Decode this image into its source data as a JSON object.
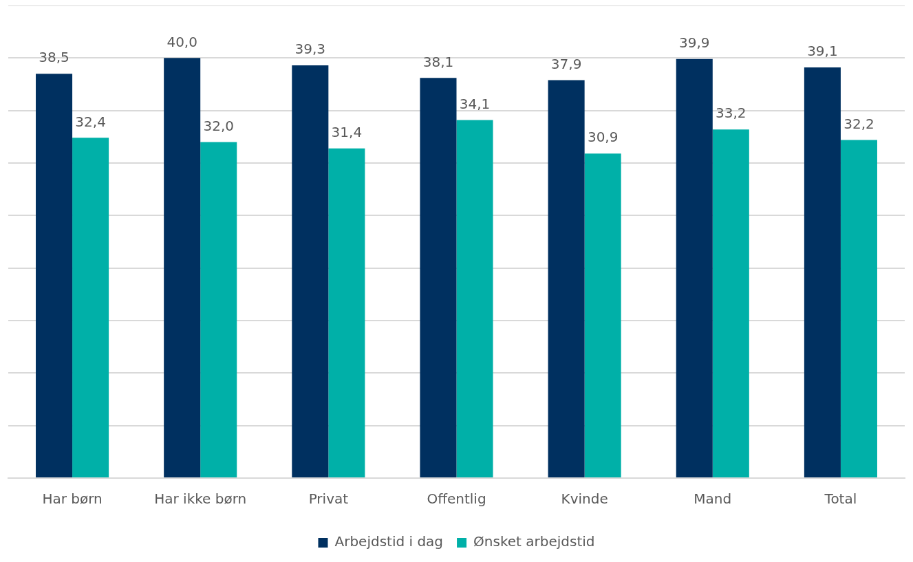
{
  "chart_data": {
    "type": "bar",
    "categories": [
      "Har børn",
      "Har ikke børn",
      "Privat",
      "Offentlig",
      "Kvinde",
      "Mand",
      "Total"
    ],
    "series": [
      {
        "name": "Arbejdstid i dag",
        "color": "#003060",
        "values": [
          38.5,
          40.0,
          39.3,
          38.1,
          37.9,
          39.9,
          39.1
        ],
        "value_labels": [
          "38,5",
          "40,0",
          "39,3",
          "38,1",
          "37,9",
          "39,9",
          "39,1"
        ]
      },
      {
        "name": "Ønsket arbejdstid",
        "color": "#00b0a8",
        "values": [
          32.4,
          32.0,
          31.4,
          34.1,
          30.9,
          33.2,
          32.2
        ],
        "value_labels": [
          "32,4",
          "32,0",
          "31,4",
          "34,1",
          "30,9",
          "33,2",
          "32,2"
        ]
      }
    ],
    "ylim": [
      0,
      45
    ],
    "yticks": [
      {
        "value": 0,
        "label": null
      },
      {
        "value": 5,
        "label": null
      },
      {
        "value": 10,
        "label": null
      },
      {
        "value": 15,
        "label": null
      },
      {
        "value": 20,
        "label": null
      },
      {
        "value": 25,
        "label": null
      },
      {
        "value": 30,
        "label": null
      },
      {
        "value": 35,
        "label": null
      },
      {
        "value": 40,
        "label": null
      },
      {
        "value": 45,
        "label": null
      }
    ],
    "tick_labels": "x",
    "grid": "y",
    "legend": "bottom"
  }
}
